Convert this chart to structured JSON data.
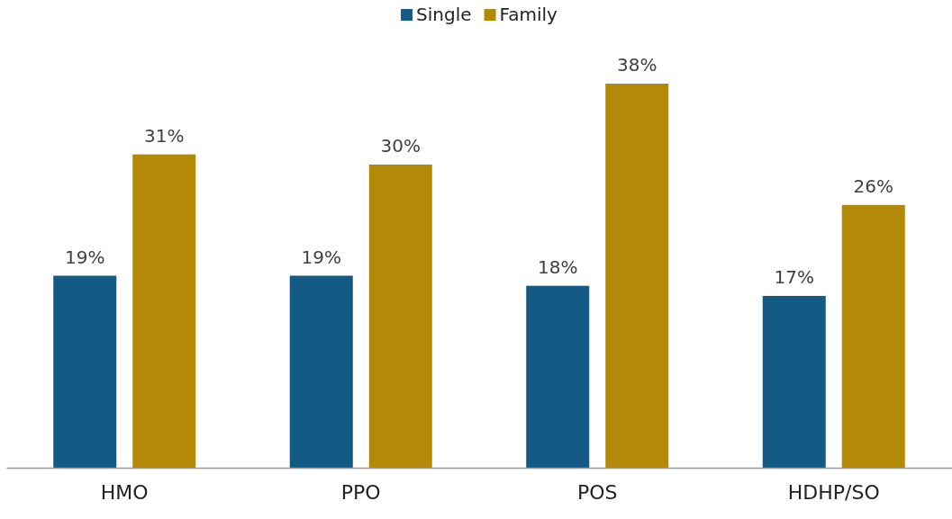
{
  "chart_data": {
    "type": "bar",
    "categories": [
      "HMO",
      "PPO",
      "POS",
      "HDHP/SO"
    ],
    "series": [
      {
        "name": "Single",
        "color": "#135a84",
        "values": [
          19,
          19,
          18,
          17
        ],
        "value_labels": [
          "19%",
          "19%",
          "18%",
          "17%"
        ]
      },
      {
        "name": "Family",
        "color": "#b38a08",
        "values": [
          31,
          30,
          38,
          26
        ],
        "value_labels": [
          "31%",
          "30%",
          "38%",
          "26%"
        ]
      }
    ],
    "legend": "top"
  }
}
